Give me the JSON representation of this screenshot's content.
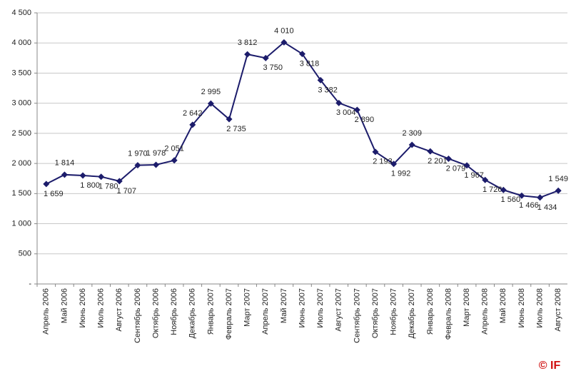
{
  "chart_data": {
    "type": "line",
    "categories": [
      "Апрель 2006",
      "Май 2006",
      "Июнь 2006",
      "Июль 2006",
      "Август 2006",
      "Сентябрь 2006",
      "Октябрь 2006",
      "Ноябрь 2006",
      "Декабрь 2006",
      "Январь 2007",
      "Февраль 2007",
      "Март 2007",
      "Апрель 2007",
      "Май 2007",
      "Июнь 2007",
      "Июль 2007",
      "Август 2007",
      "Сентябрь 2007",
      "Октябрь 2007",
      "Ноябрь 2007",
      "Декабрь 2007",
      "Январь 2008",
      "Февраль 2008",
      "Март 2008",
      "Апрель 2008",
      "Май 2008",
      "Июнь 2008",
      "Июль 2008",
      "Август 2008"
    ],
    "series": [
      {
        "color": "#1c1c6b",
        "values": [
          1659,
          1814,
          1800,
          1780,
          1707,
          1970,
          1978,
          2051,
          2642,
          2995,
          2735,
          3812,
          3750,
          4010,
          3818,
          3382,
          3004,
          2890,
          2193,
          1992,
          2309,
          2201,
          2079,
          1967,
          1726,
          1560,
          1466,
          1434,
          1549
        ],
        "value_labels": [
          "1 659",
          "1 814",
          "1 800",
          "1 780",
          "1 707",
          "1 970",
          "1 978",
          "2 051",
          "2 642",
          "2 995",
          "2 735",
          "3 812",
          "3 750",
          "4 010",
          "3 818",
          "3 382",
          "3 004",
          "2 890",
          "2 193",
          "1 992",
          "2 309",
          "2 201",
          "2 079",
          "1 967",
          "1 726",
          "1 560",
          "1 466",
          "1 434",
          "1 549"
        ]
      }
    ],
    "ylim": [
      0,
      4500
    ],
    "yticks": [
      {
        "value": 0,
        "label": "-"
      },
      500,
      {
        "value": 1000,
        "label": "1 000"
      },
      {
        "value": 1500,
        "label": "1 500"
      },
      {
        "value": 2000,
        "label": "2 000"
      },
      {
        "value": 2500,
        "label": "2 500"
      },
      {
        "value": 3000,
        "label": "3 000"
      },
      {
        "value": 3500,
        "label": "3 500"
      },
      {
        "value": 4000,
        "label": "4 000"
      },
      {
        "value": 4500,
        "label": "4 500"
      }
    ],
    "grid": true,
    "annotation": "© IF"
  }
}
